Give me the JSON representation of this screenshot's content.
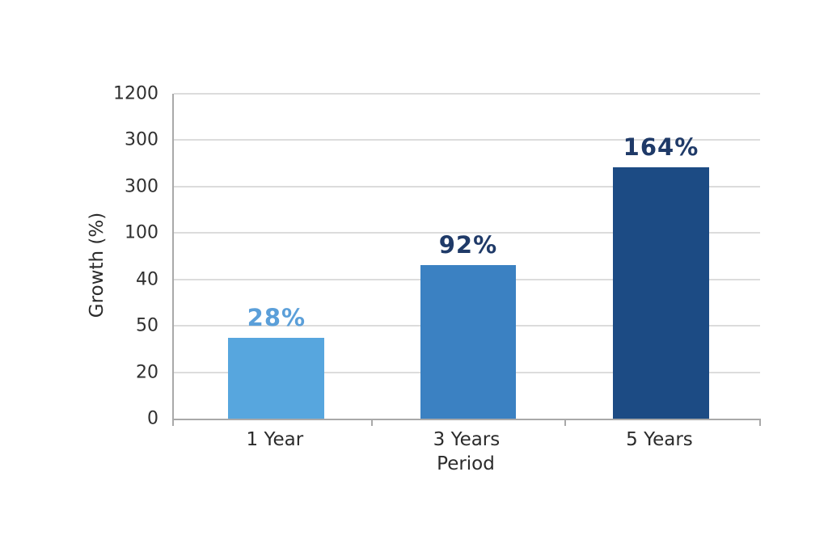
{
  "chart_data": {
    "type": "bar",
    "title": "",
    "xlabel": "Period",
    "ylabel": "Growth (%)",
    "categories": [
      "1 Year",
      "3 Years",
      "5 Years"
    ],
    "values": [
      28,
      92,
      164
    ],
    "value_labels": [
      "28%",
      "92%",
      "164%"
    ],
    "y_tick_labels": [
      "1200",
      "300",
      "300",
      "100",
      "40",
      "50",
      "20",
      "0"
    ],
    "grid": "horizontal gridlines on",
    "legend": "none",
    "bars": [
      {
        "category": "1 Year",
        "value": 28,
        "value_label": "28%",
        "height_pct": 24.9,
        "center_pct": 17.5,
        "bar_color": "#57a6de",
        "label_color": "#5b9fd9"
      },
      {
        "category": "3 Years",
        "value": 92,
        "value_label": "92%",
        "height_pct": 47.3,
        "center_pct": 50.2,
        "bar_color": "#3b81c2",
        "label_color": "#1f3a68"
      },
      {
        "category": "5 Years",
        "value": 164,
        "value_label": "164%",
        "height_pct": 77.4,
        "center_pct": 83.1,
        "bar_color": "#1c4b84",
        "label_color": "#1f3a68"
      }
    ],
    "bar_width_pct": 16.4,
    "category_boundaries_pct": [
      33.8,
      66.8,
      100
    ],
    "colors": {
      "gridline": "#dcdcdc",
      "axis": "#a9a9a9",
      "tick_text": "#303030",
      "background": "#ffffff"
    }
  }
}
